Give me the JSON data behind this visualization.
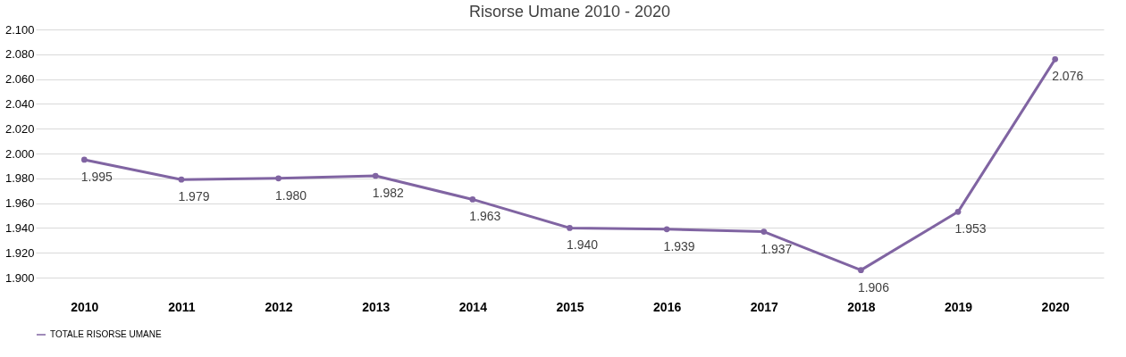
{
  "chart_data": {
    "type": "line",
    "title": "Risorse Umane 2010 - 2020",
    "categories": [
      "2010",
      "2011",
      "2012",
      "2013",
      "2014",
      "2015",
      "2016",
      "2017",
      "2018",
      "2019",
      "2020"
    ],
    "series": [
      {
        "name": "TOTALE RISORSE UMANE",
        "color": "#8064a2",
        "values": [
          1995,
          1979,
          1980,
          1982,
          1963,
          1940,
          1939,
          1937,
          1906,
          1953,
          2076
        ],
        "value_labels": [
          "1.995",
          "1.979",
          "1.980",
          "1.982",
          "1.963",
          "1.940",
          "1.939",
          "1.937",
          "1.906",
          "1.953",
          "2.076"
        ]
      }
    ],
    "ylim": [
      1900,
      2100
    ],
    "yticks": [
      {
        "value": 1900,
        "label": "1.900"
      },
      {
        "value": 1920,
        "label": "1.920"
      },
      {
        "value": 1940,
        "label": "1.940"
      },
      {
        "value": 1960,
        "label": "1.960"
      },
      {
        "value": 1980,
        "label": "1.980"
      },
      {
        "value": 2000,
        "label": "2.000"
      },
      {
        "value": 2020,
        "label": "2.020"
      },
      {
        "value": 2040,
        "label": "2.040"
      },
      {
        "value": 2060,
        "label": "2.060"
      },
      {
        "value": 2080,
        "label": "2.080"
      },
      {
        "value": 2100,
        "label": "2.100"
      }
    ],
    "grid": "y",
    "legend": "bottom",
    "marker": "circle",
    "line_style": "solid"
  }
}
